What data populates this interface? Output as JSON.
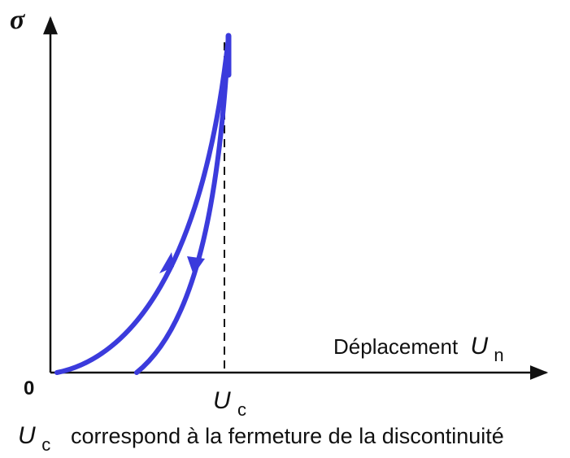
{
  "diagram": {
    "y_axis_label": "σ",
    "origin_label": "0",
    "x_axis_label_text": "Déplacement",
    "x_axis_symbol": "U",
    "x_axis_subscript": "n",
    "uc_symbol": "U",
    "uc_subscript": "c",
    "curves": [
      {
        "role": "loading",
        "direction": "up"
      },
      {
        "role": "unloading",
        "direction": "down"
      }
    ],
    "colors": {
      "curve": "#3b3bdc",
      "axis": "#111111",
      "dashed_line": "#111111"
    }
  },
  "caption": {
    "symbol": "U",
    "subscript": "c",
    "text": "correspond à la fermeture de la discontinuité"
  }
}
